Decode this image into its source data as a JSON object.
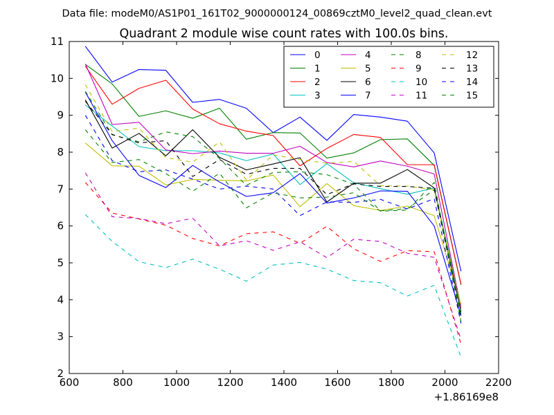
{
  "header": {
    "suptitle": "Data file: modeM0/AS1P01_161T02_9000000124_00869cztM0_level2_quad_clean.evt"
  },
  "chart_data": {
    "type": "line",
    "title": "Quadrant 2 module wise count rates with 100.0s bins.",
    "xlabel": "",
    "ylabel": "",
    "x_offset_label": "+1.86169e8",
    "xlim": [
      600,
      2200
    ],
    "ylim": [
      2,
      11
    ],
    "xticks": [
      600,
      800,
      1000,
      1200,
      1400,
      1600,
      1800,
      2000,
      2200
    ],
    "yticks": [
      2,
      3,
      4,
      5,
      6,
      7,
      8,
      9,
      10,
      11
    ],
    "legend_position": "top-right",
    "x": [
      660,
      760,
      860,
      960,
      1060,
      1160,
      1260,
      1360,
      1460,
      1560,
      1660,
      1760,
      1860,
      1960,
      2060
    ],
    "series": [
      {
        "name": "0",
        "color": "#0000ff",
        "style": "solid",
        "values": [
          10.87,
          9.9,
          10.24,
          10.22,
          9.35,
          9.43,
          9.19,
          8.53,
          8.95,
          8.32,
          9.02,
          8.95,
          8.84,
          7.98,
          4.77
        ]
      },
      {
        "name": "1",
        "color": "#008000",
        "style": "solid",
        "values": [
          10.38,
          9.85,
          8.97,
          9.12,
          8.92,
          9.19,
          8.35,
          8.53,
          8.52,
          7.84,
          7.98,
          8.34,
          8.36,
          7.64,
          4.4
        ]
      },
      {
        "name": "2",
        "color": "#ff0000",
        "style": "solid",
        "values": [
          10.33,
          9.3,
          9.73,
          9.95,
          9.17,
          8.77,
          8.57,
          8.45,
          7.63,
          8.1,
          8.48,
          8.4,
          7.66,
          7.66,
          4.42
        ]
      },
      {
        "name": "3",
        "color": "#00bfbf",
        "style": "solid",
        "values": [
          9.28,
          8.71,
          8.15,
          8.04,
          8.04,
          7.98,
          7.77,
          7.95,
          7.12,
          7.69,
          7.17,
          7.01,
          6.86,
          7.03,
          3.84
        ]
      },
      {
        "name": "4",
        "color": "#bf00bf",
        "style": "solid",
        "values": [
          10.39,
          8.75,
          8.81,
          8.06,
          7.96,
          8.03,
          7.97,
          7.97,
          8.16,
          7.72,
          7.6,
          7.76,
          7.62,
          7.41,
          3.77
        ]
      },
      {
        "name": "5",
        "color": "#bfbf00",
        "style": "solid",
        "values": [
          8.25,
          7.63,
          7.62,
          7.11,
          7.26,
          7.24,
          7.22,
          7.38,
          6.52,
          7.15,
          6.55,
          6.42,
          6.54,
          6.28,
          3.87
        ]
      },
      {
        "name": "6",
        "color": "#000000",
        "style": "solid",
        "values": [
          9.42,
          8.11,
          8.51,
          7.9,
          8.61,
          7.86,
          7.52,
          7.68,
          7.85,
          6.65,
          7.16,
          7.16,
          7.53,
          7.03,
          3.67
        ]
      },
      {
        "name": "7",
        "color": "#0000ff",
        "style": "solid",
        "values": [
          9.63,
          8.31,
          7.37,
          7.04,
          7.64,
          7.19,
          6.8,
          6.9,
          7.42,
          6.62,
          6.76,
          6.95,
          6.94,
          6.0,
          3.57
        ]
      },
      {
        "name": "8",
        "color": "#008000",
        "style": "dashed",
        "values": [
          9.65,
          8.47,
          8.28,
          8.55,
          8.42,
          7.83,
          7.1,
          7.45,
          7.47,
          7.39,
          7.13,
          6.41,
          6.47,
          6.98,
          3.62
        ]
      },
      {
        "name": "9",
        "color": "#ff0000",
        "style": "dashed",
        "values": [
          7.18,
          6.35,
          6.19,
          6.02,
          5.66,
          5.46,
          5.79,
          5.84,
          5.53,
          5.99,
          5.38,
          5.04,
          5.33,
          5.3,
          2.79
        ]
      },
      {
        "name": "10",
        "color": "#00bfbf",
        "style": "dashed",
        "values": [
          6.31,
          5.58,
          5.03,
          4.87,
          5.1,
          4.83,
          4.5,
          4.94,
          5.01,
          4.83,
          4.52,
          4.46,
          4.1,
          4.39,
          2.44
        ]
      },
      {
        "name": "11",
        "color": "#bf00bf",
        "style": "dashed",
        "values": [
          7.44,
          6.25,
          6.2,
          6.06,
          6.21,
          5.46,
          5.6,
          5.34,
          5.57,
          5.14,
          5.64,
          5.58,
          5.26,
          5.15,
          2.92
        ]
      },
      {
        "name": "12",
        "color": "#bfbf00",
        "style": "dashed",
        "values": [
          9.83,
          8.56,
          8.65,
          7.85,
          7.73,
          8.28,
          7.24,
          7.93,
          7.8,
          7.7,
          7.75,
          7.09,
          7.08,
          6.98,
          3.8
        ]
      },
      {
        "name": "13",
        "color": "#000000",
        "style": "dashed",
        "values": [
          9.38,
          8.48,
          8.25,
          8.31,
          7.34,
          7.8,
          7.4,
          7.56,
          7.56,
          6.85,
          7.14,
          7.07,
          7.07,
          7.02,
          3.48
        ]
      },
      {
        "name": "14",
        "color": "#0000ff",
        "style": "dashed",
        "values": [
          9.0,
          7.77,
          7.47,
          7.52,
          7.27,
          7.0,
          7.08,
          7.0,
          6.28,
          6.65,
          6.64,
          6.72,
          6.46,
          6.74,
          3.36
        ]
      },
      {
        "name": "15",
        "color": "#008000",
        "style": "dashed",
        "values": [
          8.61,
          7.72,
          7.8,
          7.42,
          6.94,
          7.43,
          6.49,
          6.9,
          6.76,
          6.78,
          6.9,
          6.4,
          6.43,
          7.18,
          3.4
        ]
      }
    ]
  }
}
